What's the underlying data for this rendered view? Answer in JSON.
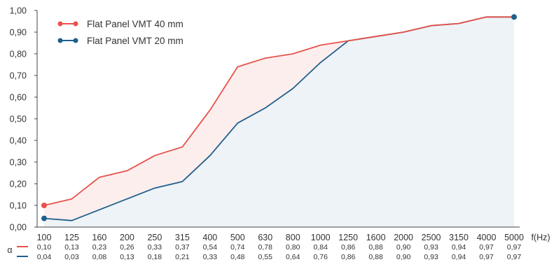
{
  "chart_data": {
    "type": "line",
    "ylim": [
      0,
      1
    ],
    "yticks": [
      "0,00",
      "0,10",
      "0,20",
      "0,30",
      "0,40",
      "0,50",
      "0,60",
      "0,70",
      "0,80",
      "0,90",
      "1,00"
    ],
    "categories": [
      "100",
      "125",
      "160",
      "200",
      "250",
      "315",
      "400",
      "500",
      "630",
      "800",
      "1000",
      "1250",
      "1600",
      "2000",
      "2500",
      "3150",
      "4000",
      "5000"
    ],
    "xlabel": "f(Hz)",
    "ylabel": "α",
    "grid": false,
    "legend_position": "top-left",
    "series": [
      {
        "name": "Flat Panel VMT 40 mm",
        "color": "#e8524a",
        "fill": "#fdeeee",
        "values": [
          0.1,
          0.13,
          0.23,
          0.26,
          0.33,
          0.37,
          0.54,
          0.74,
          0.78,
          0.8,
          0.84,
          0.86,
          0.88,
          0.9,
          0.93,
          0.94,
          0.97,
          0.97
        ],
        "labels": [
          "0,10",
          "0,13",
          "0,23",
          "0,26",
          "0,33",
          "0,37",
          "0,54",
          "0,74",
          "0,78",
          "0,80",
          "0,84",
          "0,86",
          "0,88",
          "0,90",
          "0,93",
          "0,94",
          "0,97",
          "0,97"
        ]
      },
      {
        "name": "Flat Panel VMT 20 mm",
        "color": "#1f5f8b",
        "fill": "#eef3f8",
        "values": [
          0.04,
          0.03,
          0.08,
          0.13,
          0.18,
          0.21,
          0.33,
          0.48,
          0.55,
          0.64,
          0.76,
          0.86,
          0.88,
          0.9,
          0.93,
          0.94,
          0.97,
          0.97
        ],
        "labels": [
          "0,04",
          "0,03",
          "0,08",
          "0,13",
          "0,18",
          "0,21",
          "0,33",
          "0,48",
          "0,55",
          "0,64",
          "0,76",
          "0,86",
          "0,88",
          "0,90",
          "0,93",
          "0,94",
          "0,97",
          "0,97"
        ]
      }
    ]
  }
}
